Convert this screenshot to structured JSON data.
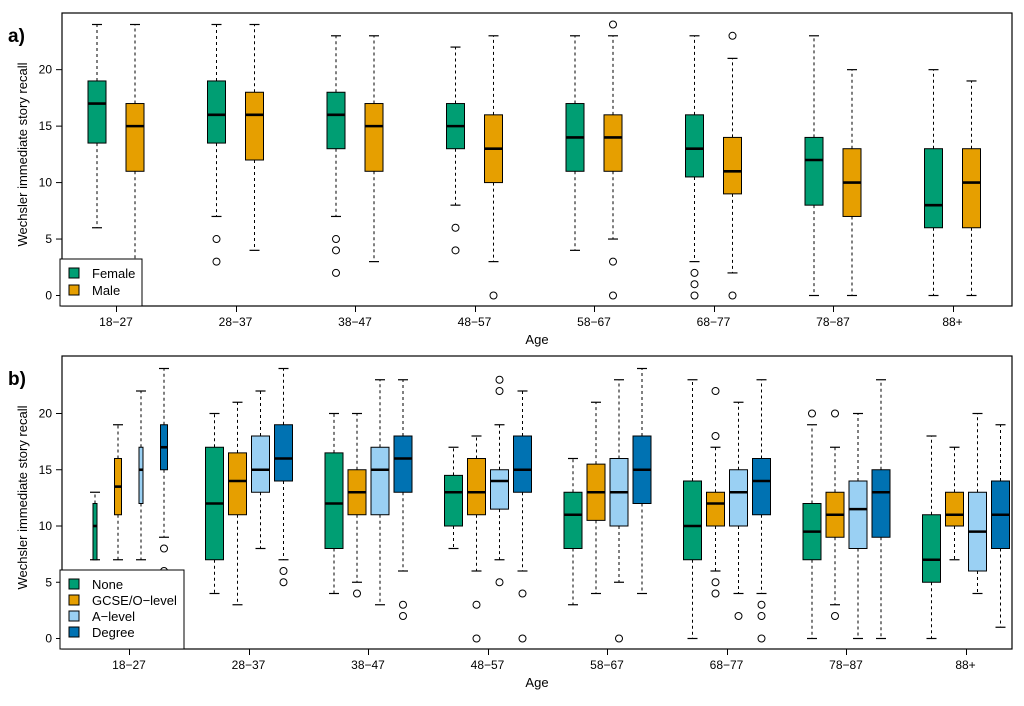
{
  "chart_data": [
    {
      "type": "box",
      "panel_label": "a)",
      "xlabel": "Age",
      "ylabel": "Wechsler immediate story recall",
      "ylim": [
        0,
        24
      ],
      "yticks": [
        0,
        5,
        10,
        15,
        20
      ],
      "categories": [
        "18−27",
        "28−37",
        "38−47",
        "48−57",
        "58−67",
        "68−77",
        "78−87",
        "88+"
      ],
      "legend_position": "bottom-left",
      "series": [
        {
          "name": "Female",
          "color": "#009E73",
          "boxes": [
            {
              "min": 6,
              "q1": 13.5,
              "median": 17,
              "q3": 19,
              "max": 24,
              "outliers": []
            },
            {
              "min": 7,
              "q1": 13.5,
              "median": 16,
              "q3": 19,
              "max": 24,
              "outliers": [
                5,
                3
              ]
            },
            {
              "min": 7,
              "q1": 13,
              "median": 16,
              "q3": 18,
              "max": 23,
              "outliers": [
                5,
                4,
                2
              ]
            },
            {
              "min": 8,
              "q1": 13,
              "median": 15,
              "q3": 17,
              "max": 22,
              "outliers": [
                6,
                4
              ]
            },
            {
              "min": 4,
              "q1": 11,
              "median": 14,
              "q3": 17,
              "max": 23,
              "outliers": []
            },
            {
              "min": 3,
              "q1": 10.5,
              "median": 13,
              "q3": 16,
              "max": 23,
              "outliers": [
                2,
                1,
                0
              ]
            },
            {
              "min": 0,
              "q1": 8,
              "median": 12,
              "q3": 14,
              "max": 23,
              "outliers": []
            },
            {
              "min": 0,
              "q1": 6,
              "median": 8,
              "q3": 13,
              "max": 20,
              "outliers": []
            }
          ]
        },
        {
          "name": "Male",
          "color": "#E69F00",
          "boxes": [
            {
              "min": 3,
              "q1": 11,
              "median": 15,
              "q3": 17,
              "max": 24,
              "outliers": []
            },
            {
              "min": 4,
              "q1": 12,
              "median": 16,
              "q3": 18,
              "max": 24,
              "outliers": []
            },
            {
              "min": 3,
              "q1": 11,
              "median": 15,
              "q3": 17,
              "max": 23,
              "outliers": []
            },
            {
              "min": 3,
              "q1": 10,
              "median": 13,
              "q3": 16,
              "max": 23,
              "outliers": [
                0
              ]
            },
            {
              "min": 5,
              "q1": 11,
              "median": 14,
              "q3": 16,
              "max": 23,
              "outliers": [
                24,
                3,
                0
              ]
            },
            {
              "min": 2,
              "q1": 9,
              "median": 11,
              "q3": 14,
              "max": 21,
              "outliers": [
                23,
                0
              ]
            },
            {
              "min": 0,
              "q1": 7,
              "median": 10,
              "q3": 13,
              "max": 20,
              "outliers": []
            },
            {
              "min": 0,
              "q1": 6,
              "median": 10,
              "q3": 13,
              "max": 19,
              "outliers": []
            }
          ]
        }
      ]
    },
    {
      "type": "box",
      "panel_label": "b)",
      "xlabel": "Age",
      "ylabel": "Wechsler immediate story recall",
      "ylim": [
        0,
        24
      ],
      "yticks": [
        0,
        5,
        10,
        15,
        20
      ],
      "categories": [
        "18−27",
        "28−37",
        "38−47",
        "48−57",
        "58−67",
        "68−77",
        "78−87",
        "88+"
      ],
      "legend_position": "bottom-left",
      "series": [
        {
          "name": "None",
          "color": "#009E73",
          "boxes": [
            {
              "min": 7,
              "q1": 7,
              "median": 10,
              "q3": 12,
              "max": 13,
              "outliers": []
            },
            {
              "min": 4,
              "q1": 7,
              "median": 12,
              "q3": 17,
              "max": 20,
              "outliers": []
            },
            {
              "min": 4,
              "q1": 8,
              "median": 12,
              "q3": 16.5,
              "max": 20,
              "outliers": []
            },
            {
              "min": 8,
              "q1": 10,
              "median": 13,
              "q3": 14.5,
              "max": 17,
              "outliers": []
            },
            {
              "min": 3,
              "q1": 8,
              "median": 11,
              "q3": 13,
              "max": 16,
              "outliers": []
            },
            {
              "min": 0,
              "q1": 7,
              "median": 10,
              "q3": 14,
              "max": 23,
              "outliers": []
            },
            {
              "min": 0,
              "q1": 7,
              "median": 9.5,
              "q3": 12,
              "max": 19,
              "outliers": [
                20
              ]
            },
            {
              "min": 0,
              "q1": 5,
              "median": 7,
              "q3": 11,
              "max": 18,
              "outliers": []
            }
          ]
        },
        {
          "name": "GCSE/O−level",
          "color": "#E69F00",
          "boxes": [
            {
              "min": 7,
              "q1": 11,
              "median": 13.5,
              "q3": 16,
              "max": 19,
              "outliers": []
            },
            {
              "min": 3,
              "q1": 11,
              "median": 14,
              "q3": 16.5,
              "max": 21,
              "outliers": []
            },
            {
              "min": 5,
              "q1": 11,
              "median": 13,
              "q3": 15,
              "max": 20,
              "outliers": [
                4
              ]
            },
            {
              "min": 6,
              "q1": 11,
              "median": 13,
              "q3": 16,
              "max": 18,
              "outliers": [
                3,
                0
              ]
            },
            {
              "min": 4,
              "q1": 10.5,
              "median": 13,
              "q3": 15.5,
              "max": 21,
              "outliers": []
            },
            {
              "min": 6,
              "q1": 10,
              "median": 12,
              "q3": 13,
              "max": 17,
              "outliers": [
                22,
                18,
                5,
                4
              ]
            },
            {
              "min": 3,
              "q1": 9,
              "median": 11,
              "q3": 13,
              "max": 17,
              "outliers": [
                20,
                2
              ]
            },
            {
              "min": 7,
              "q1": 10,
              "median": 11,
              "q3": 13,
              "max": 17,
              "outliers": []
            }
          ]
        },
        {
          "name": "A−level",
          "color": "#9AD0F3",
          "boxes": [
            {
              "min": 7,
              "q1": 12,
              "median": 15,
              "q3": 17,
              "max": 22,
              "outliers": []
            },
            {
              "min": 8,
              "q1": 13,
              "median": 15,
              "q3": 18,
              "max": 22,
              "outliers": []
            },
            {
              "min": 3,
              "q1": 11,
              "median": 15,
              "q3": 17,
              "max": 23,
              "outliers": []
            },
            {
              "min": 7,
              "q1": 11.5,
              "median": 14,
              "q3": 15,
              "max": 19,
              "outliers": [
                23,
                22,
                5
              ]
            },
            {
              "min": 5,
              "q1": 10,
              "median": 13,
              "q3": 16,
              "max": 23,
              "outliers": [
                0
              ]
            },
            {
              "min": 4,
              "q1": 10,
              "median": 13,
              "q3": 15,
              "max": 21,
              "outliers": [
                2
              ]
            },
            {
              "min": 0,
              "q1": 8,
              "median": 11.5,
              "q3": 14,
              "max": 20,
              "outliers": []
            },
            {
              "min": 4,
              "q1": 6,
              "median": 9.5,
              "q3": 13,
              "max": 20,
              "outliers": []
            }
          ]
        },
        {
          "name": "Degree",
          "color": "#0072B2",
          "boxes": [
            {
              "min": 9,
              "q1": 15,
              "median": 17,
              "q3": 19,
              "max": 24,
              "outliers": [
                8,
                6
              ]
            },
            {
              "min": 7,
              "q1": 14,
              "median": 16,
              "q3": 19,
              "max": 24,
              "outliers": [
                6,
                5
              ]
            },
            {
              "min": 6,
              "q1": 13,
              "median": 16,
              "q3": 18,
              "max": 23,
              "outliers": [
                3,
                2
              ]
            },
            {
              "min": 6,
              "q1": 13,
              "median": 15,
              "q3": 18,
              "max": 22,
              "outliers": [
                4,
                0
              ]
            },
            {
              "min": 4,
              "q1": 12,
              "median": 15,
              "q3": 18,
              "max": 24,
              "outliers": []
            },
            {
              "min": 4,
              "q1": 11,
              "median": 14,
              "q3": 16,
              "max": 23,
              "outliers": [
                3,
                2,
                0
              ]
            },
            {
              "min": 0,
              "q1": 9,
              "median": 13,
              "q3": 15,
              "max": 23,
              "outliers": []
            },
            {
              "min": 1,
              "q1": 8,
              "median": 11,
              "q3": 14,
              "max": 19,
              "outliers": []
            }
          ]
        }
      ]
    }
  ]
}
